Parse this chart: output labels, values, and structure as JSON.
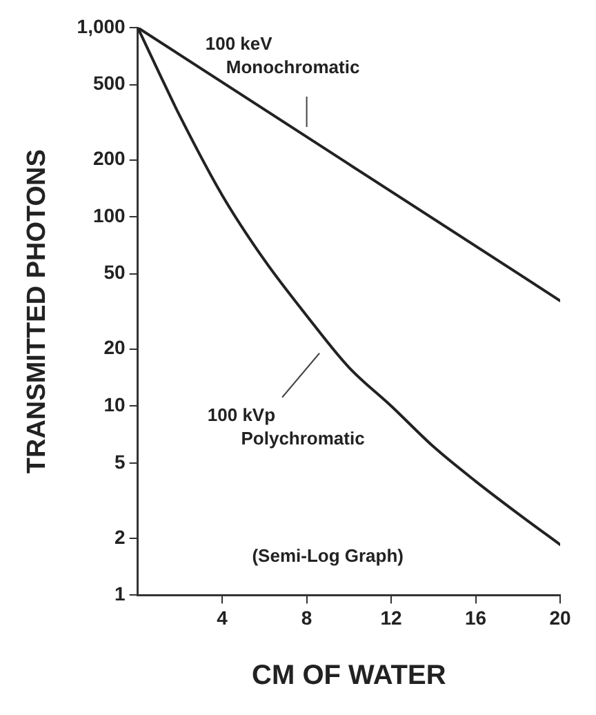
{
  "chart_data": {
    "type": "line",
    "xlabel": "CM OF WATER",
    "ylabel": "TRANSMITTED PHOTONS",
    "series": [
      {
        "x": [
          0,
          20
        ],
        "values": [
          1000,
          36
        ],
        "color": "#222222"
      },
      {
        "x": [
          0,
          1,
          2,
          4,
          6,
          8,
          10,
          12,
          14,
          16,
          18,
          20
        ],
        "values": [
          1000,
          580,
          340,
          130,
          59,
          30,
          16,
          10,
          6.1,
          4,
          2.7,
          1.85
        ],
        "color": "#222222"
      }
    ],
    "xlim": [
      0,
      20
    ],
    "xticks": [
      4,
      8,
      12,
      16,
      20
    ],
    "ylim": [
      1,
      1000
    ],
    "yticks": [
      1,
      2,
      5,
      10,
      20,
      50,
      100,
      200,
      500,
      {
        "value": 1000,
        "label": "1,000"
      }
    ],
    "log": "y",
    "grid": false,
    "legend": false,
    "marker": "none",
    "line_style": "solid",
    "annotations": [
      {
        "text": "100 keV\nMonochromatic",
        "x": 8,
        "y": 279
      },
      {
        "text": "100 kVp\nPolychromatic",
        "x": 8.8,
        "y": 20
      },
      "(Semi-Log Graph)"
    ]
  }
}
